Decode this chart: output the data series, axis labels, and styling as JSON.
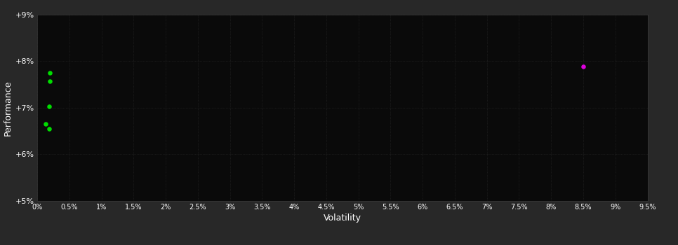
{
  "background_color": "#282828",
  "plot_background_color": "#0a0a0a",
  "text_color": "#ffffff",
  "xlabel": "Volatility",
  "ylabel": "Performance",
  "xlim": [
    0.0,
    0.095
  ],
  "ylim": [
    0.05,
    0.09
  ],
  "x_ticks": [
    0.0,
    0.005,
    0.01,
    0.015,
    0.02,
    0.025,
    0.03,
    0.035,
    0.04,
    0.045,
    0.05,
    0.055,
    0.06,
    0.065,
    0.07,
    0.075,
    0.08,
    0.085,
    0.09,
    0.095
  ],
  "x_tick_labels": [
    "0%",
    "0.5%",
    "1%",
    "1.5%",
    "2%",
    "2.5%",
    "3%",
    "3.5%",
    "4%",
    "4.5%",
    "5%",
    "5.5%",
    "6%",
    "6.5%",
    "7%",
    "7.5%",
    "8%",
    "8.5%",
    "9%",
    "9.5%"
  ],
  "y_ticks": [
    0.05,
    0.06,
    0.07,
    0.08,
    0.09
  ],
  "y_tick_labels": [
    "+5%",
    "+6%",
    "+7%",
    "+8%",
    "+9%"
  ],
  "green_points": [
    [
      0.002,
      0.0775
    ],
    [
      0.002,
      0.0757
    ],
    [
      0.0018,
      0.0703
    ],
    [
      0.0013,
      0.0665
    ],
    [
      0.0018,
      0.0655
    ]
  ],
  "magenta_point": [
    0.085,
    0.0788
  ],
  "green_color": "#00dd00",
  "magenta_color": "#dd00dd",
  "dot_size": 22,
  "grid_color": "#2a2a2a",
  "grid_linewidth": 0.5,
  "spine_color": "#3a3a3a"
}
